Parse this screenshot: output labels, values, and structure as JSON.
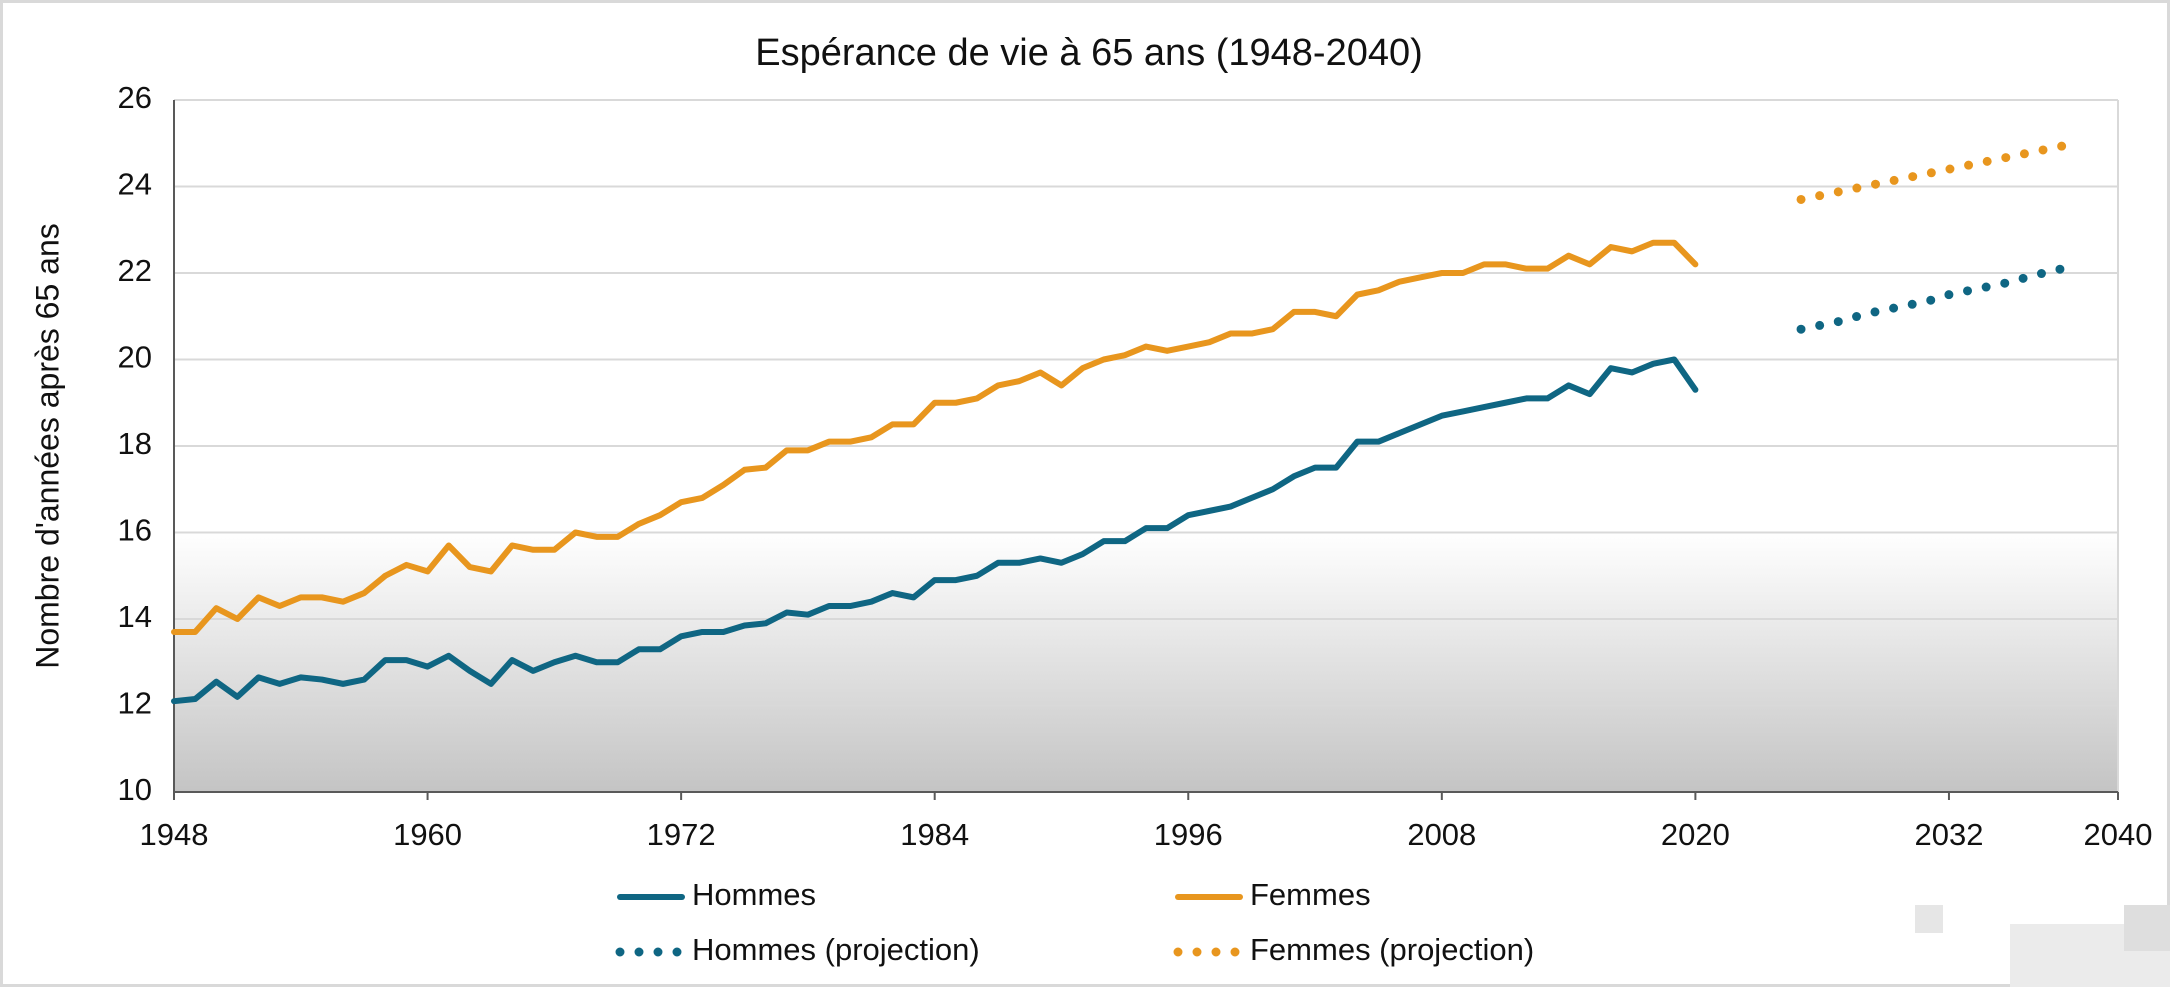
{
  "chart_data": {
    "type": "line",
    "title": "Espérance de vie à 65 ans (1948-2040)",
    "y_label": "Nombre d'années après 65 ans",
    "xlim": [
      1948,
      2040
    ],
    "xticks": [
      1948,
      1960,
      1972,
      1984,
      1996,
      2008,
      2020,
      2032,
      2040
    ],
    "ylim": [
      10,
      26
    ],
    "yticks": [
      10,
      12,
      14,
      16,
      18,
      20,
      22,
      24,
      26
    ],
    "grid": true,
    "legend": "bottom",
    "series": [
      {
        "name": "Hommes",
        "color": "#0f6683",
        "style": "solid",
        "x": [
          1948,
          1949,
          1950,
          1951,
          1952,
          1953,
          1954,
          1955,
          1956,
          1957,
          1958,
          1959,
          1960,
          1961,
          1962,
          1963,
          1964,
          1965,
          1966,
          1967,
          1968,
          1969,
          1970,
          1971,
          1972,
          1973,
          1974,
          1975,
          1976,
          1977,
          1978,
          1979,
          1980,
          1981,
          1982,
          1983,
          1984,
          1985,
          1986,
          1987,
          1988,
          1989,
          1990,
          1991,
          1992,
          1993,
          1994,
          1995,
          1996,
          1997,
          1998,
          1999,
          2000,
          2001,
          2002,
          2003,
          2004,
          2005,
          2006,
          2007,
          2008,
          2009,
          2010,
          2011,
          2012,
          2013,
          2014,
          2015,
          2016,
          2017,
          2018,
          2019,
          2020
        ],
        "values": [
          12.1,
          12.15,
          12.55,
          12.2,
          12.65,
          12.5,
          12.65,
          12.6,
          12.5,
          12.6,
          13.05,
          13.05,
          12.9,
          13.15,
          12.8,
          12.5,
          13.05,
          12.8,
          13.0,
          13.15,
          13.0,
          13.0,
          13.3,
          13.3,
          13.6,
          13.7,
          13.7,
          13.85,
          13.9,
          14.15,
          14.1,
          14.3,
          14.3,
          14.4,
          14.6,
          14.5,
          14.9,
          14.9,
          15.0,
          15.3,
          15.3,
          15.4,
          15.3,
          15.5,
          15.8,
          15.8,
          16.1,
          16.1,
          16.4,
          16.5,
          16.6,
          16.8,
          17.0,
          17.3,
          17.5,
          17.5,
          18.1,
          18.1,
          18.3,
          18.5,
          18.7,
          18.8,
          18.9,
          19.0,
          19.1,
          19.1,
          19.4,
          19.2,
          19.8,
          19.7,
          19.9,
          20.0,
          19.3
        ]
      },
      {
        "name": "Femmes",
        "color": "#e8961e",
        "style": "solid",
        "x": [
          1948,
          1949,
          1950,
          1951,
          1952,
          1953,
          1954,
          1955,
          1956,
          1957,
          1958,
          1959,
          1960,
          1961,
          1962,
          1963,
          1964,
          1965,
          1966,
          1967,
          1968,
          1969,
          1970,
          1971,
          1972,
          1973,
          1974,
          1975,
          1976,
          1977,
          1978,
          1979,
          1980,
          1981,
          1982,
          1983,
          1984,
          1985,
          1986,
          1987,
          1988,
          1989,
          1990,
          1991,
          1992,
          1993,
          1994,
          1995,
          1996,
          1997,
          1998,
          1999,
          2000,
          2001,
          2002,
          2003,
          2004,
          2005,
          2006,
          2007,
          2008,
          2009,
          2010,
          2011,
          2012,
          2013,
          2014,
          2015,
          2016,
          2017,
          2018,
          2019,
          2020
        ],
        "values": [
          13.7,
          13.7,
          14.25,
          14.0,
          14.5,
          14.3,
          14.5,
          14.5,
          14.4,
          14.6,
          15.0,
          15.25,
          15.1,
          15.7,
          15.2,
          15.1,
          15.7,
          15.6,
          15.6,
          16.0,
          15.9,
          15.9,
          16.2,
          16.4,
          16.7,
          16.8,
          17.1,
          17.45,
          17.5,
          17.9,
          17.9,
          18.1,
          18.1,
          18.2,
          18.5,
          18.5,
          19.0,
          19.0,
          19.1,
          19.4,
          19.5,
          19.7,
          19.4,
          19.8,
          20.0,
          20.1,
          20.3,
          20.2,
          20.3,
          20.4,
          20.6,
          20.6,
          20.7,
          21.1,
          21.1,
          21.0,
          21.5,
          21.6,
          21.8,
          21.9,
          22.0,
          22.0,
          22.2,
          22.2,
          22.1,
          22.1,
          22.4,
          22.2,
          22.6,
          22.5,
          22.7,
          22.7,
          22.2
        ]
      },
      {
        "name": "Hommes (projection)",
        "color": "#0f6683",
        "style": "dotted",
        "x": [
          2025,
          2026,
          2027,
          2028,
          2029,
          2030,
          2031,
          2032,
          2033,
          2034,
          2035,
          2036,
          2037,
          2038
        ],
        "values": [
          20.7,
          20.8,
          20.9,
          21.05,
          21.15,
          21.25,
          21.35,
          21.5,
          21.6,
          21.7,
          21.8,
          21.95,
          22.05,
          22.2
        ]
      },
      {
        "name": "Femmes (projection)",
        "color": "#e8961e",
        "style": "dotted",
        "x": [
          2025,
          2026,
          2027,
          2028,
          2029,
          2030,
          2031,
          2032,
          2033,
          2034,
          2035,
          2036,
          2037,
          2038
        ],
        "values": [
          23.7,
          23.8,
          23.9,
          24.0,
          24.1,
          24.2,
          24.3,
          24.4,
          24.5,
          24.6,
          24.7,
          24.8,
          24.9,
          25.0
        ]
      }
    ]
  }
}
